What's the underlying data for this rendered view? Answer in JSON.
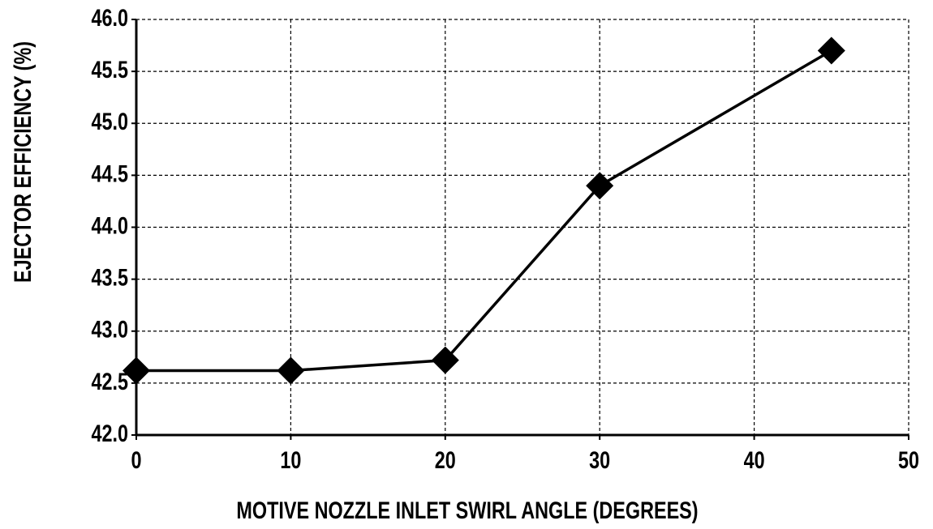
{
  "chart_data": {
    "type": "line",
    "xlabel": "MOTIVE NOZZLE INLET SWIRL ANGLE  (DEGREES)",
    "ylabel": "EJECTOR EFFICIENCY (%)",
    "x": [
      0,
      10,
      20,
      30,
      45
    ],
    "values": [
      42.62,
      42.62,
      42.72,
      44.4,
      45.7
    ],
    "color": "#000000",
    "marker": "diamond",
    "xlim": [
      0,
      50
    ],
    "xticks": [
      0,
      10,
      20,
      30,
      40,
      50
    ],
    "ylim": [
      42,
      46
    ],
    "yticks": [
      {
        "value": 42,
        "label": "42.0"
      },
      42.5,
      {
        "value": 43,
        "label": "43.0"
      },
      43.5,
      {
        "value": 44,
        "label": "44.0"
      },
      44.5,
      {
        "value": 45,
        "label": "45.0"
      },
      45.5,
      {
        "value": 46,
        "label": "46.0"
      }
    ],
    "grid": true
  }
}
